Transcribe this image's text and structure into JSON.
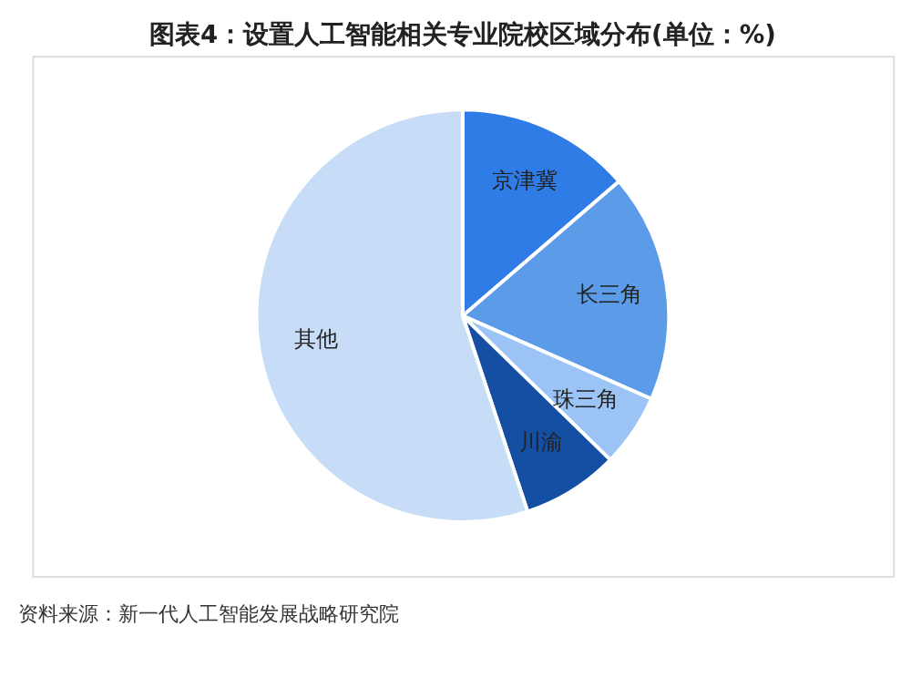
{
  "chart_data": {
    "type": "pie",
    "title": "图表4：设置人工智能相关专业院校区域分布(单位：%)",
    "categories": [
      "京津冀",
      "长三角",
      "珠三角",
      "川渝",
      "其他"
    ],
    "values": [
      13.7,
      17.9,
      5.7,
      7.6,
      55.1
    ],
    "colors": [
      "#2f7ce6",
      "#5b9be8",
      "#9cc3f5",
      "#144fa3",
      "#c6dcf7"
    ],
    "legend": false,
    "annotations": [
      "资料来源：新一代人工智能发展战略研究院"
    ]
  }
}
